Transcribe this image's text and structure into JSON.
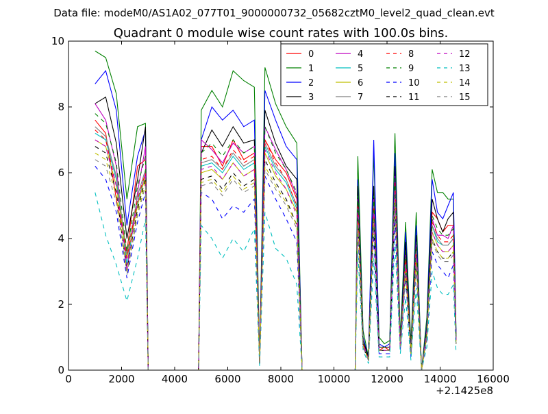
{
  "suptitle": "Data file: modeM0/AS1A02_077T01_9000000732_05682cztM0_level2_quad_clean.evt",
  "chart_data": {
    "type": "line",
    "title": "Quadrant 0 module wise count rates with 100.0s bins.",
    "xlabel": "",
    "ylabel": "",
    "xlim": [
      0,
      16000
    ],
    "ylim": [
      0,
      10
    ],
    "x_offset_label": "+2.1425e8",
    "xticks": [
      "0",
      "2000",
      "4000",
      "6000",
      "8000",
      "10000",
      "12000",
      "14000",
      "16000"
    ],
    "yticks": [
      "0",
      "2",
      "4",
      "6",
      "8",
      "10"
    ],
    "grid": false,
    "legend_position": "top-right",
    "legend_columns": 4,
    "x": [
      1000,
      1400,
      1800,
      2200,
      2600,
      2900,
      3000,
      4900,
      5000,
      5400,
      5800,
      6200,
      6600,
      7000,
      7200,
      7400,
      7800,
      8200,
      8600,
      8800,
      10800,
      10900,
      11100,
      11300,
      11500,
      11700,
      11900,
      12100,
      12300,
      12500,
      12700,
      12900,
      13100,
      13300,
      13500,
      13700,
      13900,
      14100,
      14300,
      14500,
      14600
    ],
    "series": [
      {
        "name": "0",
        "color": "#ff0000",
        "dash": "solid",
        "values": [
          7.6,
          7.2,
          5.2,
          3.6,
          6.2,
          6.4,
          0,
          0,
          6.8,
          6.8,
          6.2,
          7.0,
          6.4,
          6.6,
          0.2,
          7.0,
          6.4,
          6.0,
          5.2,
          0,
          0,
          5.4,
          0.9,
          0.3,
          5.4,
          0.6,
          0.7,
          0.6,
          6.0,
          0.7,
          3.6,
          0.5,
          4.0,
          0,
          1.2,
          4.8,
          4.6,
          4.2,
          4.4,
          4.4,
          1.0
        ]
      },
      {
        "name": "1",
        "color": "#008000",
        "dash": "solid",
        "values": [
          9.7,
          9.5,
          8.4,
          5.2,
          7.4,
          7.5,
          0,
          0,
          7.9,
          8.5,
          8.0,
          9.1,
          8.8,
          8.6,
          0.3,
          9.2,
          8.1,
          7.4,
          6.9,
          0,
          0,
          6.5,
          1.2,
          0.4,
          6.6,
          1.0,
          0.8,
          0.9,
          7.2,
          1.0,
          4.5,
          0.8,
          4.8,
          0,
          1.6,
          6.1,
          5.4,
          5.4,
          5.2,
          5.2,
          1.2
        ]
      },
      {
        "name": "2",
        "color": "#0000ff",
        "dash": "solid",
        "values": [
          8.7,
          9.1,
          7.9,
          4.4,
          6.5,
          7.3,
          0,
          0,
          7.0,
          8.0,
          7.6,
          7.9,
          7.4,
          7.6,
          0.2,
          8.5,
          7.6,
          6.8,
          6.4,
          0,
          0,
          5.8,
          1.0,
          0.4,
          7.0,
          0.8,
          0.7,
          0.8,
          6.6,
          0.8,
          4.2,
          0.6,
          4.4,
          0,
          1.4,
          5.8,
          4.8,
          4.6,
          5.0,
          5.4,
          1.1
        ]
      },
      {
        "name": "3",
        "color": "#000000",
        "dash": "solid",
        "values": [
          8.1,
          8.3,
          6.9,
          4.0,
          5.8,
          7.4,
          0,
          0,
          6.6,
          7.3,
          6.8,
          7.4,
          6.9,
          7.0,
          0.2,
          7.9,
          6.9,
          6.2,
          5.8,
          0,
          0,
          5.6,
          0.9,
          0.4,
          5.6,
          0.7,
          0.7,
          0.7,
          6.2,
          0.8,
          3.9,
          0.6,
          4.1,
          0,
          1.3,
          5.2,
          4.6,
          4.2,
          4.6,
          4.8,
          1.0
        ]
      },
      {
        "name": "4",
        "color": "#bf00bf",
        "dash": "solid",
        "values": [
          8.1,
          7.6,
          6.2,
          3.0,
          5.4,
          6.8,
          0,
          0,
          7.0,
          6.7,
          6.3,
          6.9,
          6.6,
          6.8,
          0.2,
          7.4,
          6.7,
          6.1,
          5.3,
          0,
          0,
          5.2,
          0.8,
          0.3,
          5.2,
          0.6,
          0.6,
          0.6,
          5.9,
          0.7,
          3.5,
          0.5,
          3.9,
          0,
          1.2,
          4.6,
          4.1,
          4.1,
          4.0,
          4.4,
          0.9
        ]
      },
      {
        "name": "5",
        "color": "#00bfbf",
        "dash": "solid",
        "values": [
          7.2,
          7.0,
          5.8,
          3.2,
          5.1,
          6.0,
          0,
          0,
          6.2,
          6.3,
          6.0,
          6.5,
          6.1,
          6.3,
          0.2,
          6.8,
          6.1,
          5.7,
          4.9,
          0,
          0,
          4.9,
          0.8,
          0.3,
          5.0,
          0.6,
          0.6,
          0.6,
          5.6,
          0.7,
          3.3,
          0.5,
          3.6,
          0,
          1.1,
          4.4,
          3.9,
          3.8,
          3.8,
          4.0,
          0.9
        ]
      },
      {
        "name": "6",
        "color": "#bfbf00",
        "dash": "solid",
        "values": [
          7.0,
          6.8,
          5.6,
          3.4,
          5.0,
          5.9,
          0,
          0,
          6.0,
          6.1,
          5.8,
          6.3,
          5.9,
          6.1,
          0.2,
          6.6,
          5.9,
          5.5,
          4.8,
          0,
          0,
          4.8,
          0.8,
          0.3,
          4.8,
          0.6,
          0.6,
          0.6,
          5.4,
          0.7,
          3.2,
          0.5,
          3.5,
          0,
          1.1,
          4.2,
          3.8,
          3.6,
          3.6,
          3.8,
          0.9
        ]
      },
      {
        "name": "7",
        "color": "#808080",
        "dash": "solid",
        "values": [
          7.4,
          7.1,
          5.9,
          3.5,
          5.3,
          6.1,
          0,
          0,
          6.3,
          6.4,
          6.1,
          6.6,
          6.2,
          6.4,
          0.2,
          6.9,
          6.2,
          5.8,
          5.0,
          0,
          0,
          5.0,
          0.8,
          0.3,
          5.0,
          0.6,
          0.6,
          0.6,
          5.6,
          0.7,
          3.3,
          0.5,
          3.6,
          0,
          1.1,
          4.4,
          4.0,
          3.8,
          3.8,
          4.0,
          0.9
        ]
      },
      {
        "name": "8",
        "color": "#ff0000",
        "dash": "dash",
        "values": [
          7.3,
          7.0,
          5.6,
          3.4,
          5.2,
          6.0,
          0,
          0,
          6.4,
          6.5,
          6.1,
          6.7,
          6.3,
          6.5,
          0.2,
          7.0,
          6.3,
          5.8,
          5.0,
          0,
          0,
          5.1,
          0.8,
          0.3,
          5.1,
          0.6,
          0.6,
          0.6,
          5.7,
          0.7,
          3.4,
          0.5,
          3.7,
          0,
          1.1,
          4.5,
          4.1,
          3.9,
          3.9,
          4.1,
          0.9
        ]
      },
      {
        "name": "9",
        "color": "#008000",
        "dash": "dash",
        "values": [
          7.8,
          7.5,
          6.3,
          3.6,
          5.6,
          6.5,
          0,
          0,
          6.6,
          6.9,
          6.5,
          7.0,
          6.6,
          6.8,
          0.2,
          7.4,
          6.6,
          6.1,
          5.4,
          0,
          0,
          5.3,
          0.9,
          0.3,
          5.3,
          0.7,
          0.7,
          0.7,
          5.9,
          0.8,
          3.6,
          0.5,
          3.9,
          0,
          1.2,
          4.7,
          4.3,
          4.1,
          4.1,
          4.3,
          1.0
        ]
      },
      {
        "name": "10",
        "color": "#0000ff",
        "dash": "dash",
        "values": [
          6.2,
          5.8,
          4.8,
          2.8,
          4.5,
          5.4,
          0,
          0,
          5.4,
          5.2,
          4.6,
          5.0,
          4.8,
          5.2,
          0.2,
          5.9,
          5.2,
          4.6,
          3.9,
          0,
          0,
          4.2,
          0.7,
          0.3,
          4.1,
          0.5,
          0.5,
          0.5,
          4.6,
          0.6,
          2.8,
          0.4,
          3.1,
          0,
          0.9,
          3.6,
          3.2,
          3.0,
          2.8,
          3.2,
          0.8
        ]
      },
      {
        "name": "11",
        "color": "#000000",
        "dash": "dash",
        "values": [
          6.8,
          6.6,
          5.4,
          3.0,
          4.9,
          5.8,
          0,
          0,
          5.8,
          5.9,
          5.5,
          6.0,
          5.6,
          5.8,
          0.2,
          6.4,
          5.7,
          5.2,
          4.4,
          0,
          0,
          4.6,
          0.7,
          0.3,
          4.5,
          0.6,
          0.6,
          0.6,
          5.1,
          0.7,
          3.0,
          0.5,
          3.3,
          0,
          1.0,
          4.0,
          3.6,
          3.4,
          3.4,
          3.6,
          0.8
        ]
      },
      {
        "name": "12",
        "color": "#bf00bf",
        "dash": "dash",
        "values": [
          7.0,
          6.8,
          5.6,
          3.2,
          5.1,
          6.0,
          0,
          0,
          6.1,
          6.2,
          5.8,
          6.3,
          5.9,
          6.1,
          0.2,
          6.7,
          6.0,
          5.5,
          4.7,
          0,
          0,
          4.8,
          0.8,
          0.3,
          4.8,
          0.6,
          0.6,
          0.6,
          5.4,
          0.7,
          3.2,
          0.5,
          3.5,
          0,
          1.1,
          4.2,
          3.8,
          3.6,
          3.6,
          3.8,
          0.9
        ]
      },
      {
        "name": "13",
        "color": "#00bfbf",
        "dash": "dash",
        "values": [
          5.4,
          4.1,
          3.2,
          2.1,
          3.4,
          4.6,
          0,
          0,
          4.4,
          4.0,
          3.4,
          4.0,
          3.6,
          4.3,
          0.1,
          4.8,
          3.7,
          3.4,
          2.6,
          0,
          0,
          3.6,
          0.6,
          0.2,
          3.4,
          0.4,
          0.4,
          0.4,
          3.9,
          0.5,
          2.2,
          0.3,
          2.5,
          0,
          0.7,
          3.0,
          2.5,
          2.3,
          2.3,
          2.6,
          0.5
        ]
      },
      {
        "name": "14",
        "color": "#bfbf00",
        "dash": "dash",
        "values": [
          6.6,
          6.4,
          5.3,
          3.0,
          4.8,
          5.7,
          0,
          0,
          5.7,
          5.8,
          5.4,
          5.9,
          5.5,
          5.7,
          0.2,
          6.2,
          5.6,
          5.1,
          4.4,
          0,
          0,
          4.5,
          0.7,
          0.3,
          4.5,
          0.6,
          0.6,
          0.6,
          5.1,
          0.7,
          3.0,
          0.5,
          3.3,
          0,
          1.0,
          4.0,
          3.6,
          3.4,
          3.4,
          3.6,
          0.8
        ]
      },
      {
        "name": "15",
        "color": "#808080",
        "dash": "dash",
        "values": [
          6.4,
          6.2,
          5.1,
          2.9,
          4.7,
          5.6,
          0,
          0,
          5.6,
          5.7,
          5.3,
          5.8,
          5.4,
          5.6,
          0.2,
          6.1,
          5.5,
          5.0,
          4.3,
          0,
          0,
          4.4,
          0.7,
          0.3,
          4.4,
          0.6,
          0.6,
          0.6,
          5.0,
          0.7,
          2.9,
          0.5,
          3.2,
          0,
          1.0,
          3.9,
          3.5,
          3.3,
          3.3,
          3.5,
          0.8
        ]
      }
    ]
  }
}
